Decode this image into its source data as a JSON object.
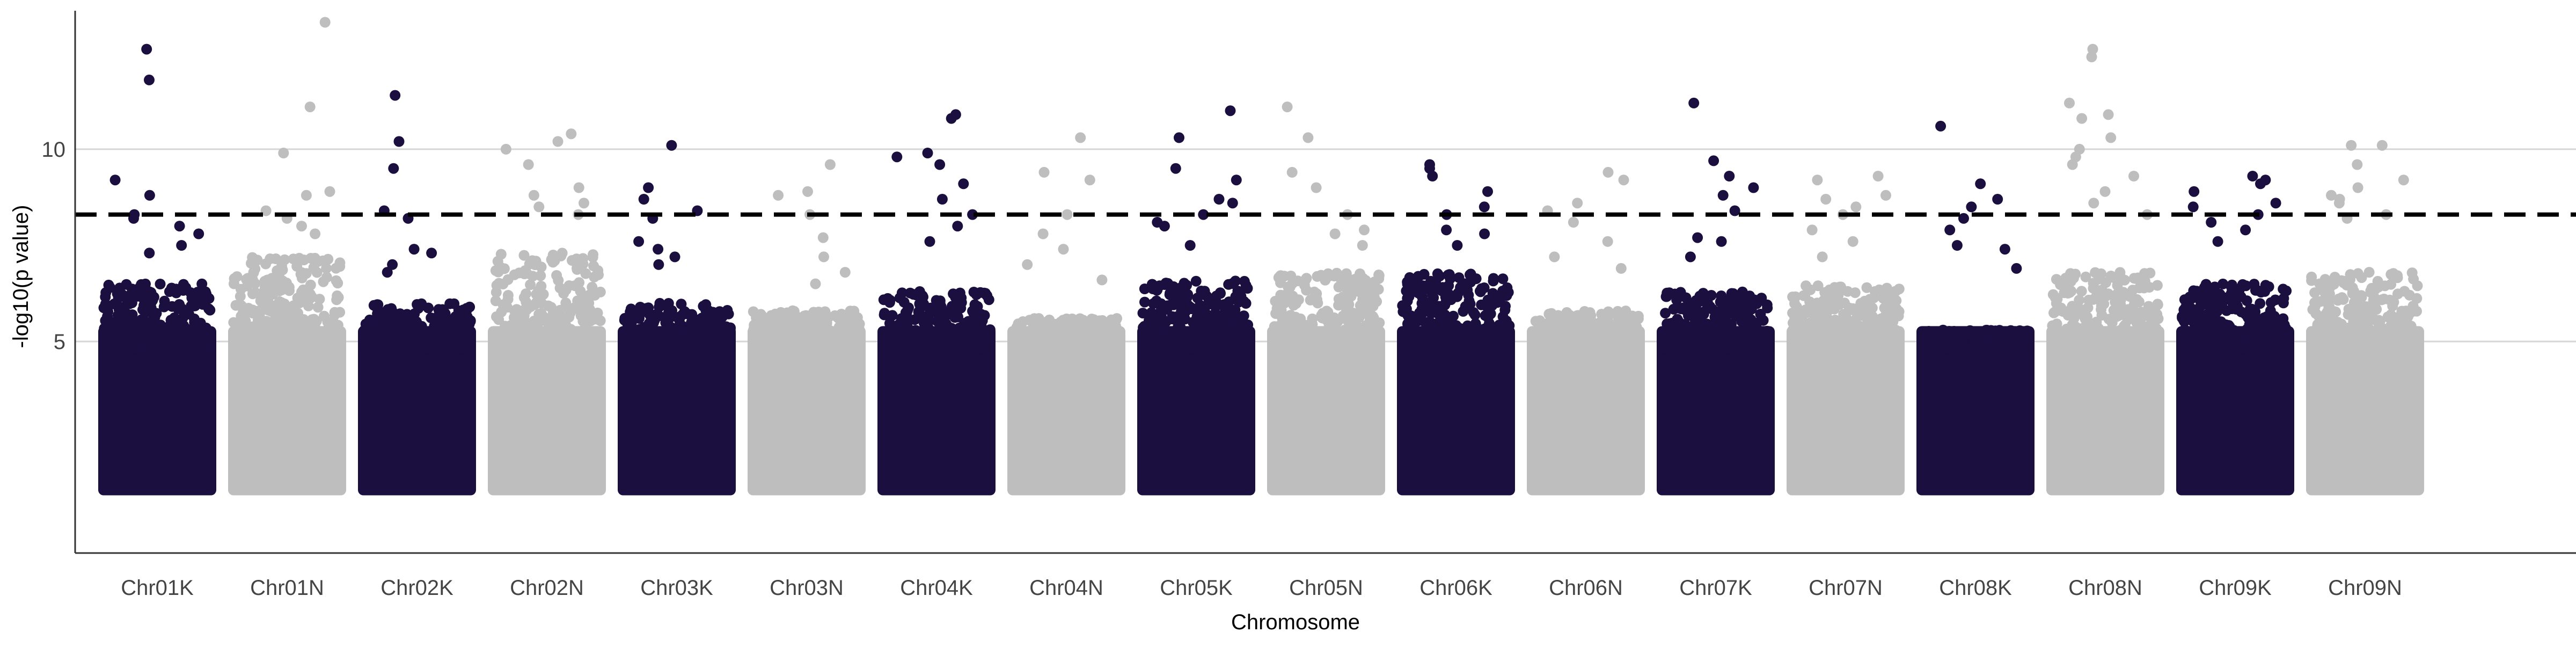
{
  "chart_data": {
    "type": "scatter",
    "subtype": "manhattan",
    "title": "",
    "xlabel": "Chromosome",
    "ylabel": "-log10(p value)",
    "ylim": [
      -0.5,
      13.6
    ],
    "yticks": [
      5,
      10
    ],
    "grid": {
      "horizontal_major": true,
      "vertical": false
    },
    "legend": "none",
    "threshold": {
      "value": 8.3,
      "style": "dashed",
      "color": "#000000"
    },
    "colors": {
      "dark": "#1b0f40",
      "light": "#bebebe",
      "grid": "#d6d6d6",
      "axis": "#333333"
    },
    "base_band": {
      "from": 1.0,
      "to": 5.0,
      "note": "dense cloud of points from ~1 up to ~5 on every chromosome"
    },
    "chromosomes": [
      {
        "name": "Chr01K",
        "color": "dark",
        "max_dense": 6.5,
        "peaks": [
          12.6,
          11.8,
          9.2,
          8.8,
          8.3,
          8.2,
          8.0,
          7.8,
          7.5,
          7.3
        ]
      },
      {
        "name": "Chr01N",
        "color": "light",
        "max_dense": 7.2,
        "peaks": [
          13.3,
          11.1,
          9.9,
          8.9,
          8.8,
          8.4,
          8.2,
          8.0,
          7.8
        ]
      },
      {
        "name": "Chr02K",
        "color": "dark",
        "max_dense": 6.0,
        "peaks": [
          11.4,
          10.2,
          9.5,
          8.4,
          8.2,
          7.4,
          7.3,
          7.0,
          6.8
        ]
      },
      {
        "name": "Chr02N",
        "color": "light",
        "max_dense": 7.3,
        "peaks": [
          10.4,
          10.2,
          10.0,
          9.6,
          9.0,
          8.8,
          8.6,
          8.5,
          8.3
        ]
      },
      {
        "name": "Chr03K",
        "color": "dark",
        "max_dense": 6.0,
        "peaks": [
          10.1,
          9.0,
          8.7,
          8.4,
          8.2,
          7.6,
          7.4,
          7.2,
          7.0
        ]
      },
      {
        "name": "Chr03N",
        "color": "light",
        "max_dense": 5.8,
        "peaks": [
          9.6,
          8.9,
          8.8,
          8.3,
          7.7,
          7.2,
          6.8,
          6.5
        ]
      },
      {
        "name": "Chr04K",
        "color": "dark",
        "max_dense": 6.3,
        "peaks": [
          10.9,
          10.8,
          9.9,
          9.8,
          9.6,
          9.1,
          8.7,
          8.3,
          8.0,
          7.6
        ]
      },
      {
        "name": "Chr04N",
        "color": "light",
        "max_dense": 5.6,
        "peaks": [
          10.3,
          9.4,
          9.2,
          8.3,
          7.8,
          7.4,
          7.0,
          6.6
        ]
      },
      {
        "name": "Chr05K",
        "color": "dark",
        "max_dense": 6.6,
        "peaks": [
          11.0,
          10.3,
          9.5,
          9.2,
          8.7,
          8.6,
          8.3,
          8.1,
          8.0,
          7.5
        ]
      },
      {
        "name": "Chr05N",
        "color": "light",
        "max_dense": 6.8,
        "peaks": [
          11.1,
          10.3,
          9.4,
          9.0,
          8.3,
          7.9,
          7.8,
          7.5
        ]
      },
      {
        "name": "Chr06K",
        "color": "dark",
        "max_dense": 6.8,
        "peaks": [
          9.6,
          9.5,
          9.3,
          8.9,
          8.5,
          8.3,
          7.9,
          7.8,
          7.5
        ]
      },
      {
        "name": "Chr06N",
        "color": "light",
        "max_dense": 5.8,
        "peaks": [
          9.4,
          9.2,
          8.6,
          8.4,
          8.1,
          7.6,
          7.2,
          6.9
        ]
      },
      {
        "name": "Chr07K",
        "color": "dark",
        "max_dense": 6.3,
        "peaks": [
          11.2,
          9.7,
          9.3,
          9.0,
          8.8,
          8.4,
          7.7,
          7.6,
          7.2
        ]
      },
      {
        "name": "Chr07N",
        "color": "light",
        "max_dense": 6.5,
        "peaks": [
          9.3,
          9.2,
          8.8,
          8.7,
          8.5,
          8.3,
          7.9,
          7.6,
          7.2
        ]
      },
      {
        "name": "Chr08K",
        "color": "dark",
        "max_dense": 5.3,
        "peaks": [
          10.6,
          9.1,
          8.7,
          8.5,
          8.2,
          7.9,
          7.5,
          7.4,
          6.9
        ]
      },
      {
        "name": "Chr08N",
        "color": "light",
        "max_dense": 6.8,
        "peaks": [
          12.6,
          12.4,
          11.2,
          10.9,
          10.8,
          10.3,
          10.0,
          9.8,
          9.6,
          9.3,
          8.9,
          8.6,
          8.3
        ]
      },
      {
        "name": "Chr09K",
        "color": "dark",
        "max_dense": 6.5,
        "peaks": [
          9.3,
          9.2,
          9.1,
          8.9,
          8.6,
          8.5,
          8.3,
          8.1,
          7.9,
          7.6
        ]
      },
      {
        "name": "Chr09N",
        "color": "light",
        "max_dense": 6.8,
        "peaks": [
          10.1,
          10.1,
          9.6,
          9.2,
          9.0,
          8.8,
          8.7,
          8.6,
          8.3,
          8.2
        ]
      }
    ]
  }
}
